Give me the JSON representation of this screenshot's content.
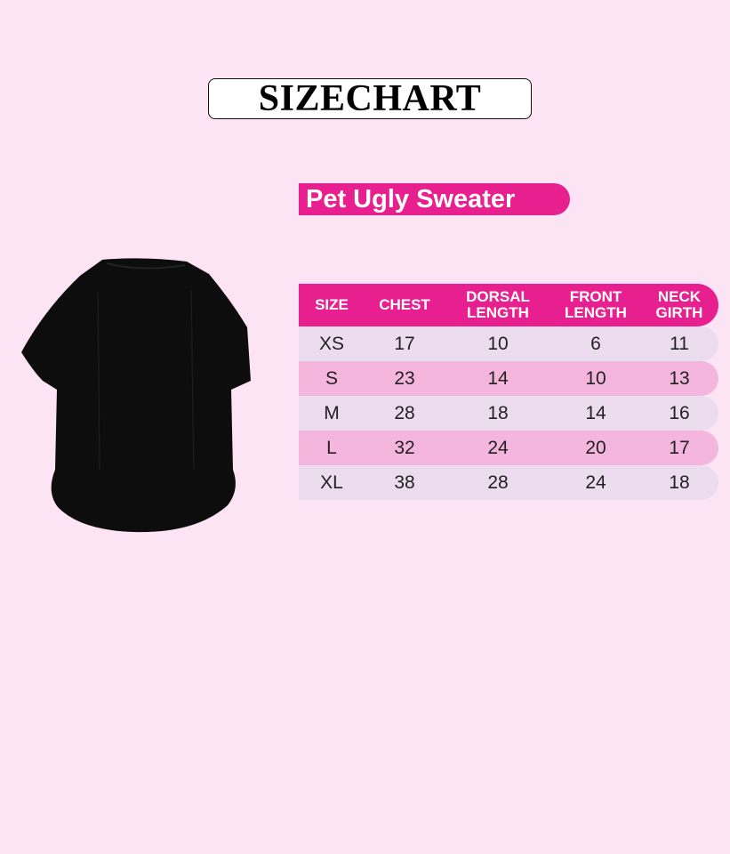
{
  "title": "SIZECHART",
  "product": "Pet Ugly Sweater",
  "colors": {
    "background": "#fce4f4",
    "accent": "#e8208f",
    "row_light": "#ebdcee",
    "row_pink": "#f5b6dd",
    "sweater": "#0d0d0d"
  },
  "table": {
    "headers": [
      [
        "SIZE",
        ""
      ],
      [
        "CHEST",
        ""
      ],
      [
        "DORSAL",
        "LENGTH"
      ],
      [
        "FRONT",
        "LENGTH"
      ],
      [
        "NECK",
        "GIRTH"
      ]
    ],
    "rows": [
      [
        "XS",
        "17",
        "10",
        "6",
        "11"
      ],
      [
        "S",
        "23",
        "14",
        "10",
        "13"
      ],
      [
        "M",
        "28",
        "18",
        "14",
        "16"
      ],
      [
        "L",
        "32",
        "24",
        "20",
        "17"
      ],
      [
        "XL",
        "38",
        "28",
        "24",
        "18"
      ]
    ]
  }
}
